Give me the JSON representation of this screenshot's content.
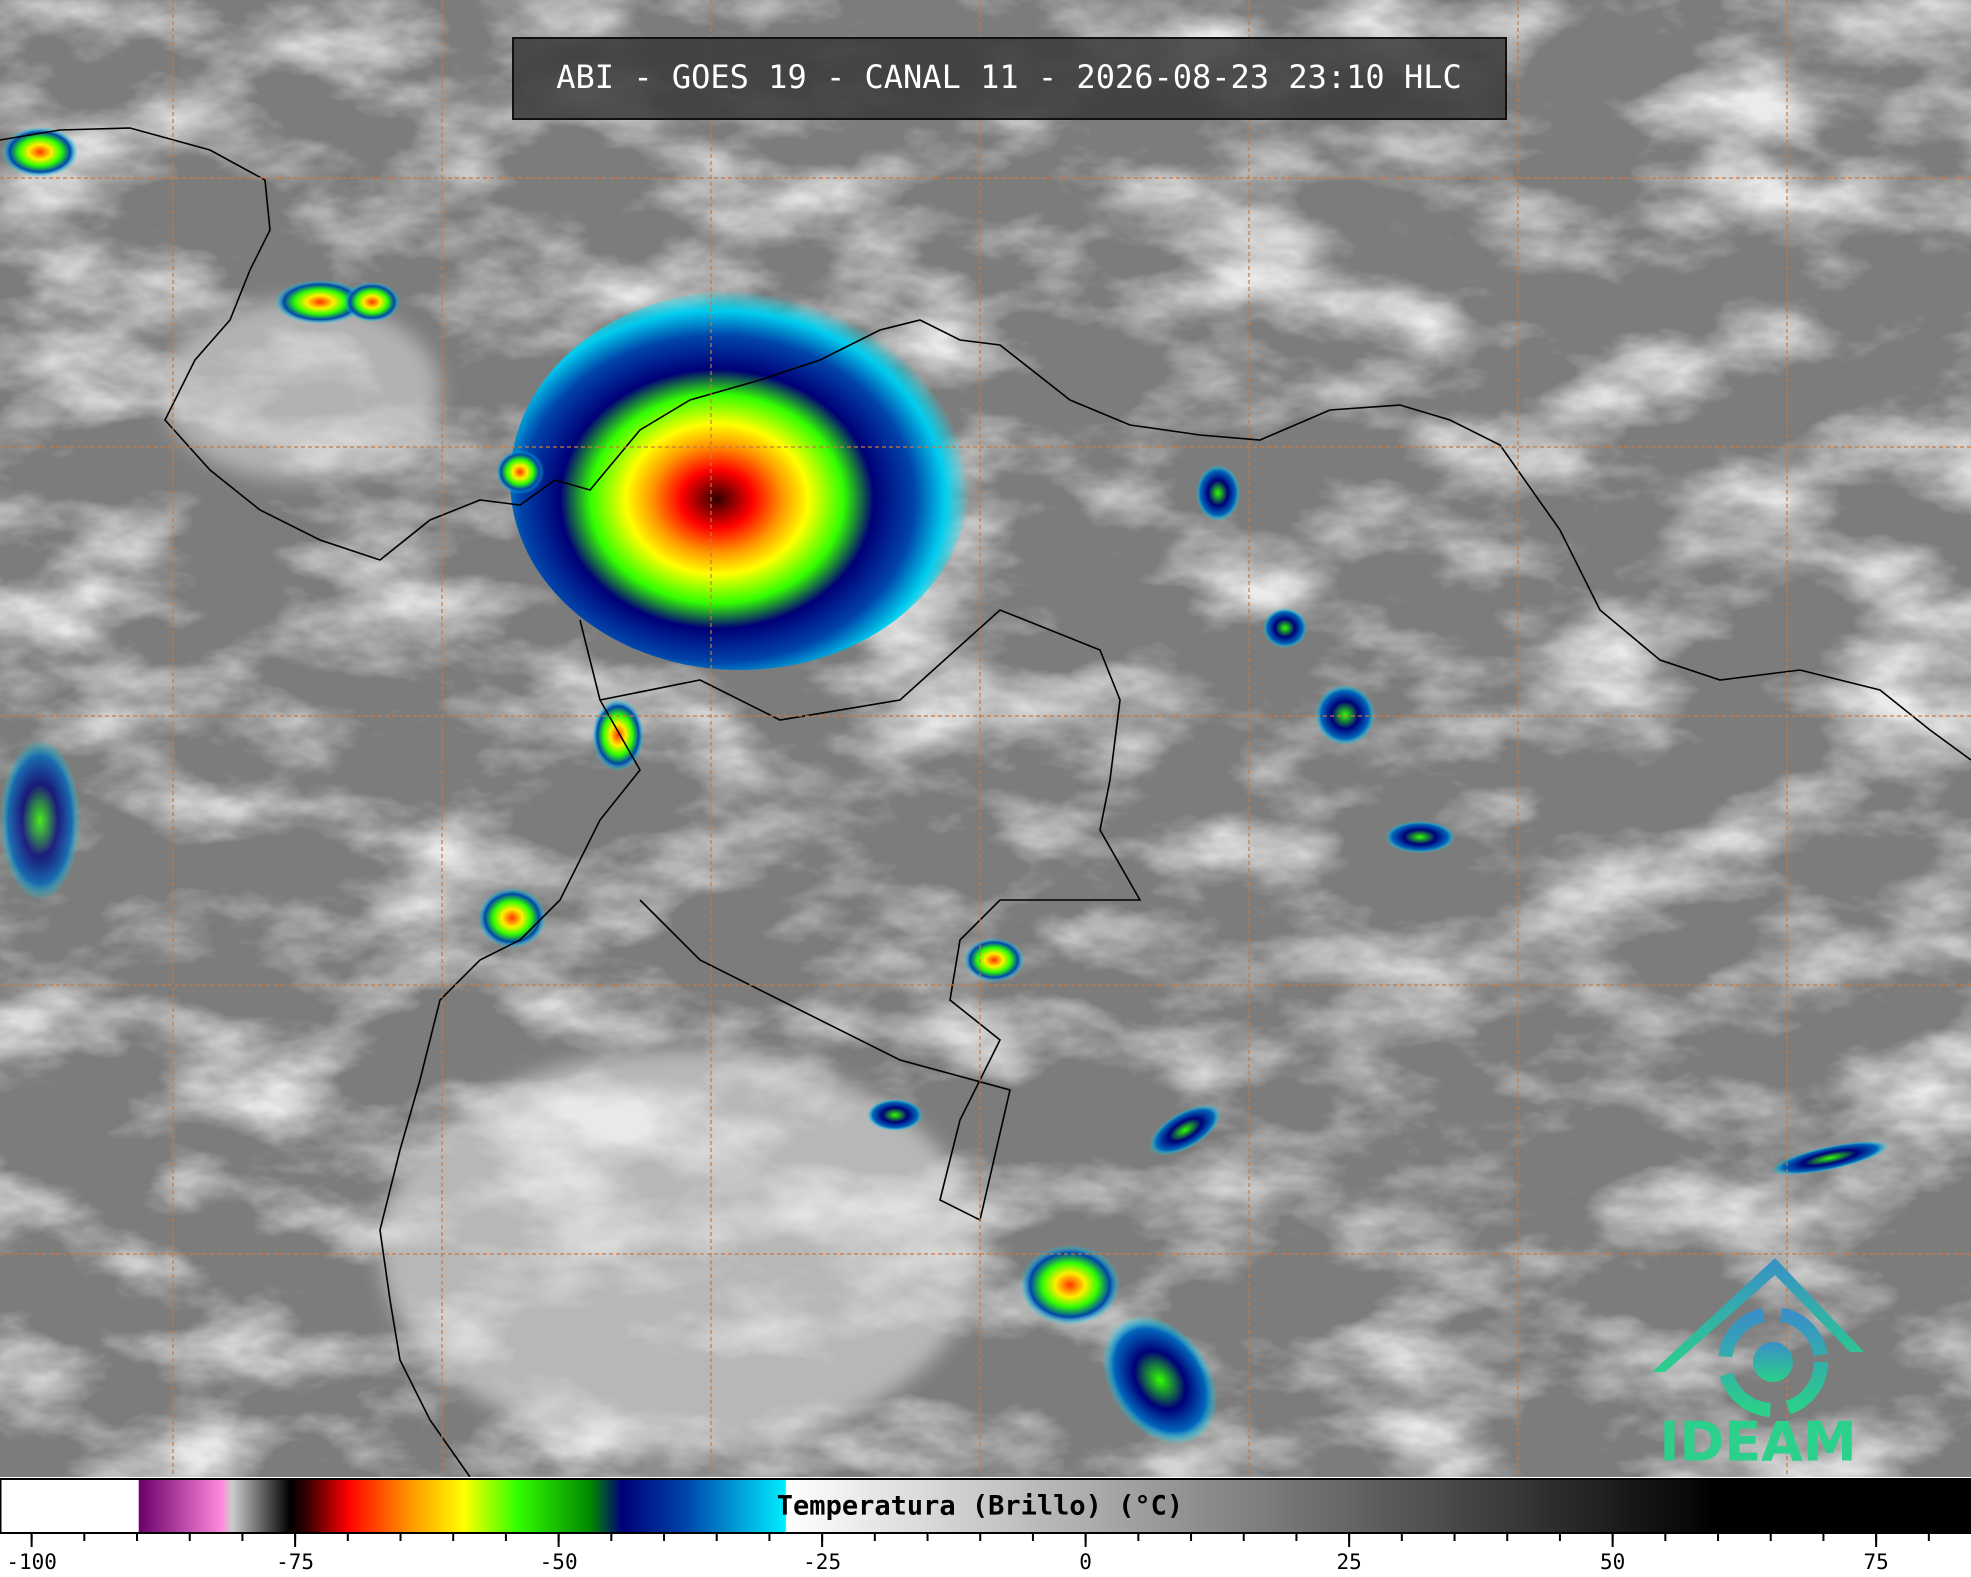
{
  "title": "ABI - GOES 19 - CANAL 11 - 2026-08-23 23:10 HLC",
  "logo": "IDEAM",
  "colorbar": {
    "label": "Temperatura (Brillo) (°C)",
    "lim": [
      -103,
      84
    ],
    "ticks": [
      -100,
      -75,
      -50,
      -25,
      0,
      25,
      50,
      75
    ],
    "minor_ticks": [
      -100,
      -95,
      -90,
      -85,
      -80,
      -75,
      -70,
      -65,
      -60,
      -55,
      -50,
      -45,
      -40,
      -35,
      -30,
      -25,
      -20,
      -15,
      -10,
      -5,
      0,
      5,
      10,
      15,
      20,
      25,
      30,
      35,
      40,
      45,
      50,
      55,
      60,
      65,
      70,
      75,
      80
    ],
    "stops": [
      {
        "value": -103,
        "color": "#ffffff"
      },
      {
        "value": -89.9,
        "color": "#ffffff"
      },
      {
        "value": -89.8,
        "color": "#6a006a"
      },
      {
        "value": -82,
        "color": "#ff88dd"
      },
      {
        "value": -81,
        "color": "#cccccc"
      },
      {
        "value": -75.5,
        "color": "#000000"
      },
      {
        "value": -74,
        "color": "#300000"
      },
      {
        "value": -70,
        "color": "#ff0000"
      },
      {
        "value": -64,
        "color": "#ff9900"
      },
      {
        "value": -59,
        "color": "#ffff00"
      },
      {
        "value": -54,
        "color": "#33ff00"
      },
      {
        "value": -47,
        "color": "#008800"
      },
      {
        "value": -44,
        "color": "#000077"
      },
      {
        "value": -38,
        "color": "#0044aa"
      },
      {
        "value": -28.5,
        "color": "#00eeff"
      },
      {
        "value": -28.4,
        "color": "#ffffff"
      },
      {
        "value": 60,
        "color": "#000000"
      },
      {
        "value": 84,
        "color": "#000000"
      }
    ]
  }
}
